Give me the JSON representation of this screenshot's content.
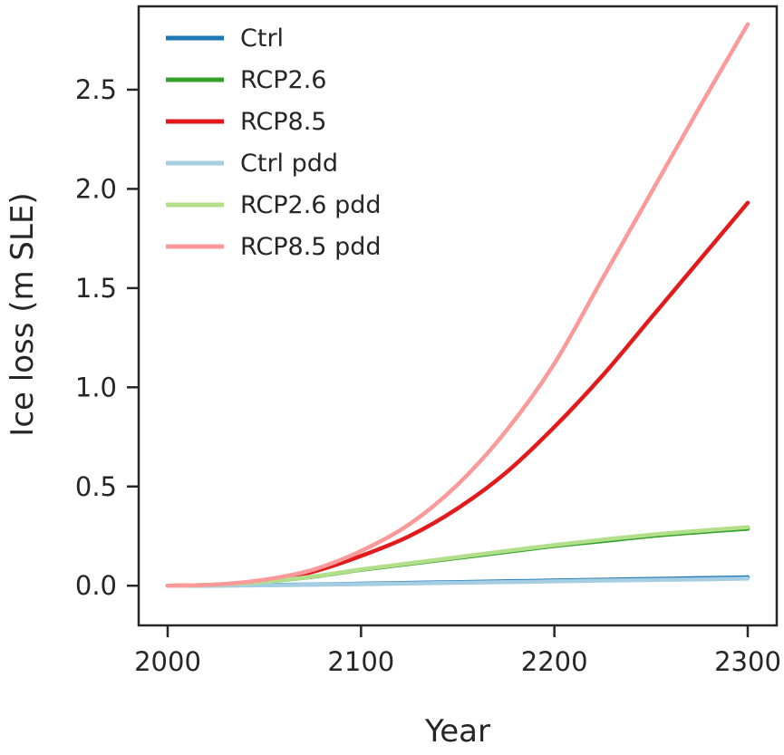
{
  "colors": {
    "text": "#262626",
    "spine": "#262626",
    "background": "#ffffff"
  },
  "chart_data": {
    "type": "line",
    "title": "",
    "xlabel": "Year",
    "ylabel": "Ice loss (m SLE)",
    "xlim": [
      1985,
      2315
    ],
    "ylim": [
      -0.2,
      2.92
    ],
    "xticks": [
      2000,
      2100,
      2200,
      2300
    ],
    "yticks": [
      0.0,
      0.5,
      1.0,
      1.5,
      2.0,
      2.5
    ],
    "grid": false,
    "legend_position": "upper left",
    "x": [
      2000,
      2025,
      2050,
      2075,
      2100,
      2125,
      2150,
      2175,
      2200,
      2225,
      2250,
      2275,
      2300
    ],
    "series": [
      {
        "name": "Ctrl",
        "color": "#1f78b4",
        "values": [
          0.0,
          0.001,
          0.003,
          0.006,
          0.01,
          0.014,
          0.018,
          0.022,
          0.026,
          0.03,
          0.034,
          0.038,
          0.042
        ]
      },
      {
        "name": "RCP2.6",
        "color": "#33a02c",
        "values": [
          0.0,
          0.005,
          0.02,
          0.045,
          0.08,
          0.11,
          0.14,
          0.17,
          0.2,
          0.225,
          0.25,
          0.27,
          0.287
        ]
      },
      {
        "name": "RCP8.5",
        "color": "#e31a1c",
        "values": [
          0.0,
          0.005,
          0.025,
          0.07,
          0.15,
          0.25,
          0.39,
          0.57,
          0.8,
          1.06,
          1.35,
          1.64,
          1.93
        ]
      },
      {
        "name": "Ctrl pdd",
        "color": "#a6cee3",
        "values": [
          0.0,
          0.001,
          0.002,
          0.005,
          0.008,
          0.011,
          0.015,
          0.018,
          0.022,
          0.026,
          0.029,
          0.032,
          0.036
        ]
      },
      {
        "name": "RCP2.6 pdd",
        "color": "#b2df8a",
        "values": [
          0.0,
          0.005,
          0.02,
          0.046,
          0.082,
          0.113,
          0.144,
          0.175,
          0.205,
          0.232,
          0.257,
          0.277,
          0.295
        ]
      },
      {
        "name": "RCP8.5 pdd",
        "color": "#fb9a99",
        "values": [
          0.0,
          0.006,
          0.03,
          0.08,
          0.175,
          0.31,
          0.51,
          0.78,
          1.12,
          1.55,
          1.98,
          2.41,
          2.83
        ]
      }
    ]
  }
}
